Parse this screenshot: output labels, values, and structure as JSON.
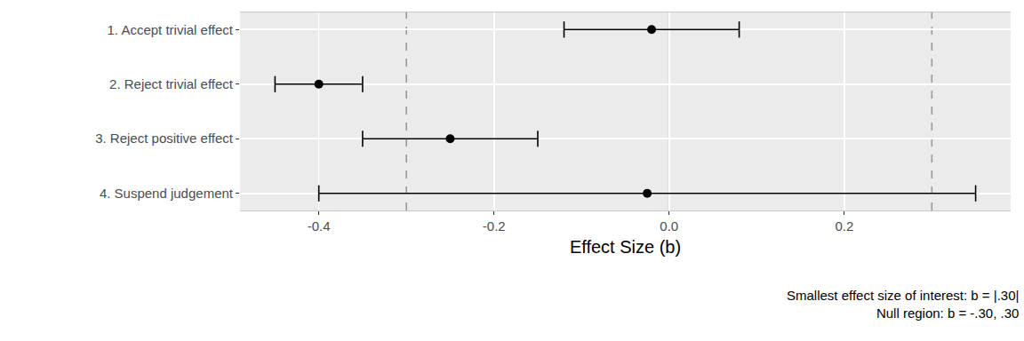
{
  "chart_data": {
    "type": "forest",
    "categories": [
      "1. Accept trivial effect",
      "2. Reject trivial effect",
      "3. Reject positive effect",
      "4. Suspend judgement"
    ],
    "values": [
      -0.02,
      -0.4,
      -0.25,
      -0.025
    ],
    "lower": [
      -0.12,
      -0.45,
      -0.35,
      -0.4
    ],
    "upper": [
      0.08,
      -0.35,
      -0.15,
      0.35
    ],
    "x_label": "Effect Size (b)",
    "xlim": [
      -0.49,
      0.39
    ],
    "xticks": [
      -0.4,
      -0.2,
      {
        "value": 0,
        "label": "0.0"
      },
      0.2
    ],
    "reference_line": 0,
    "null_region": [
      -0.3,
      0.3
    ],
    "caption": [
      "Smallest effect size of interest: b = |.30|",
      "Null region: b = -.30, .30"
    ],
    "color": "#000000",
    "marker": "circle",
    "grid": true
  }
}
